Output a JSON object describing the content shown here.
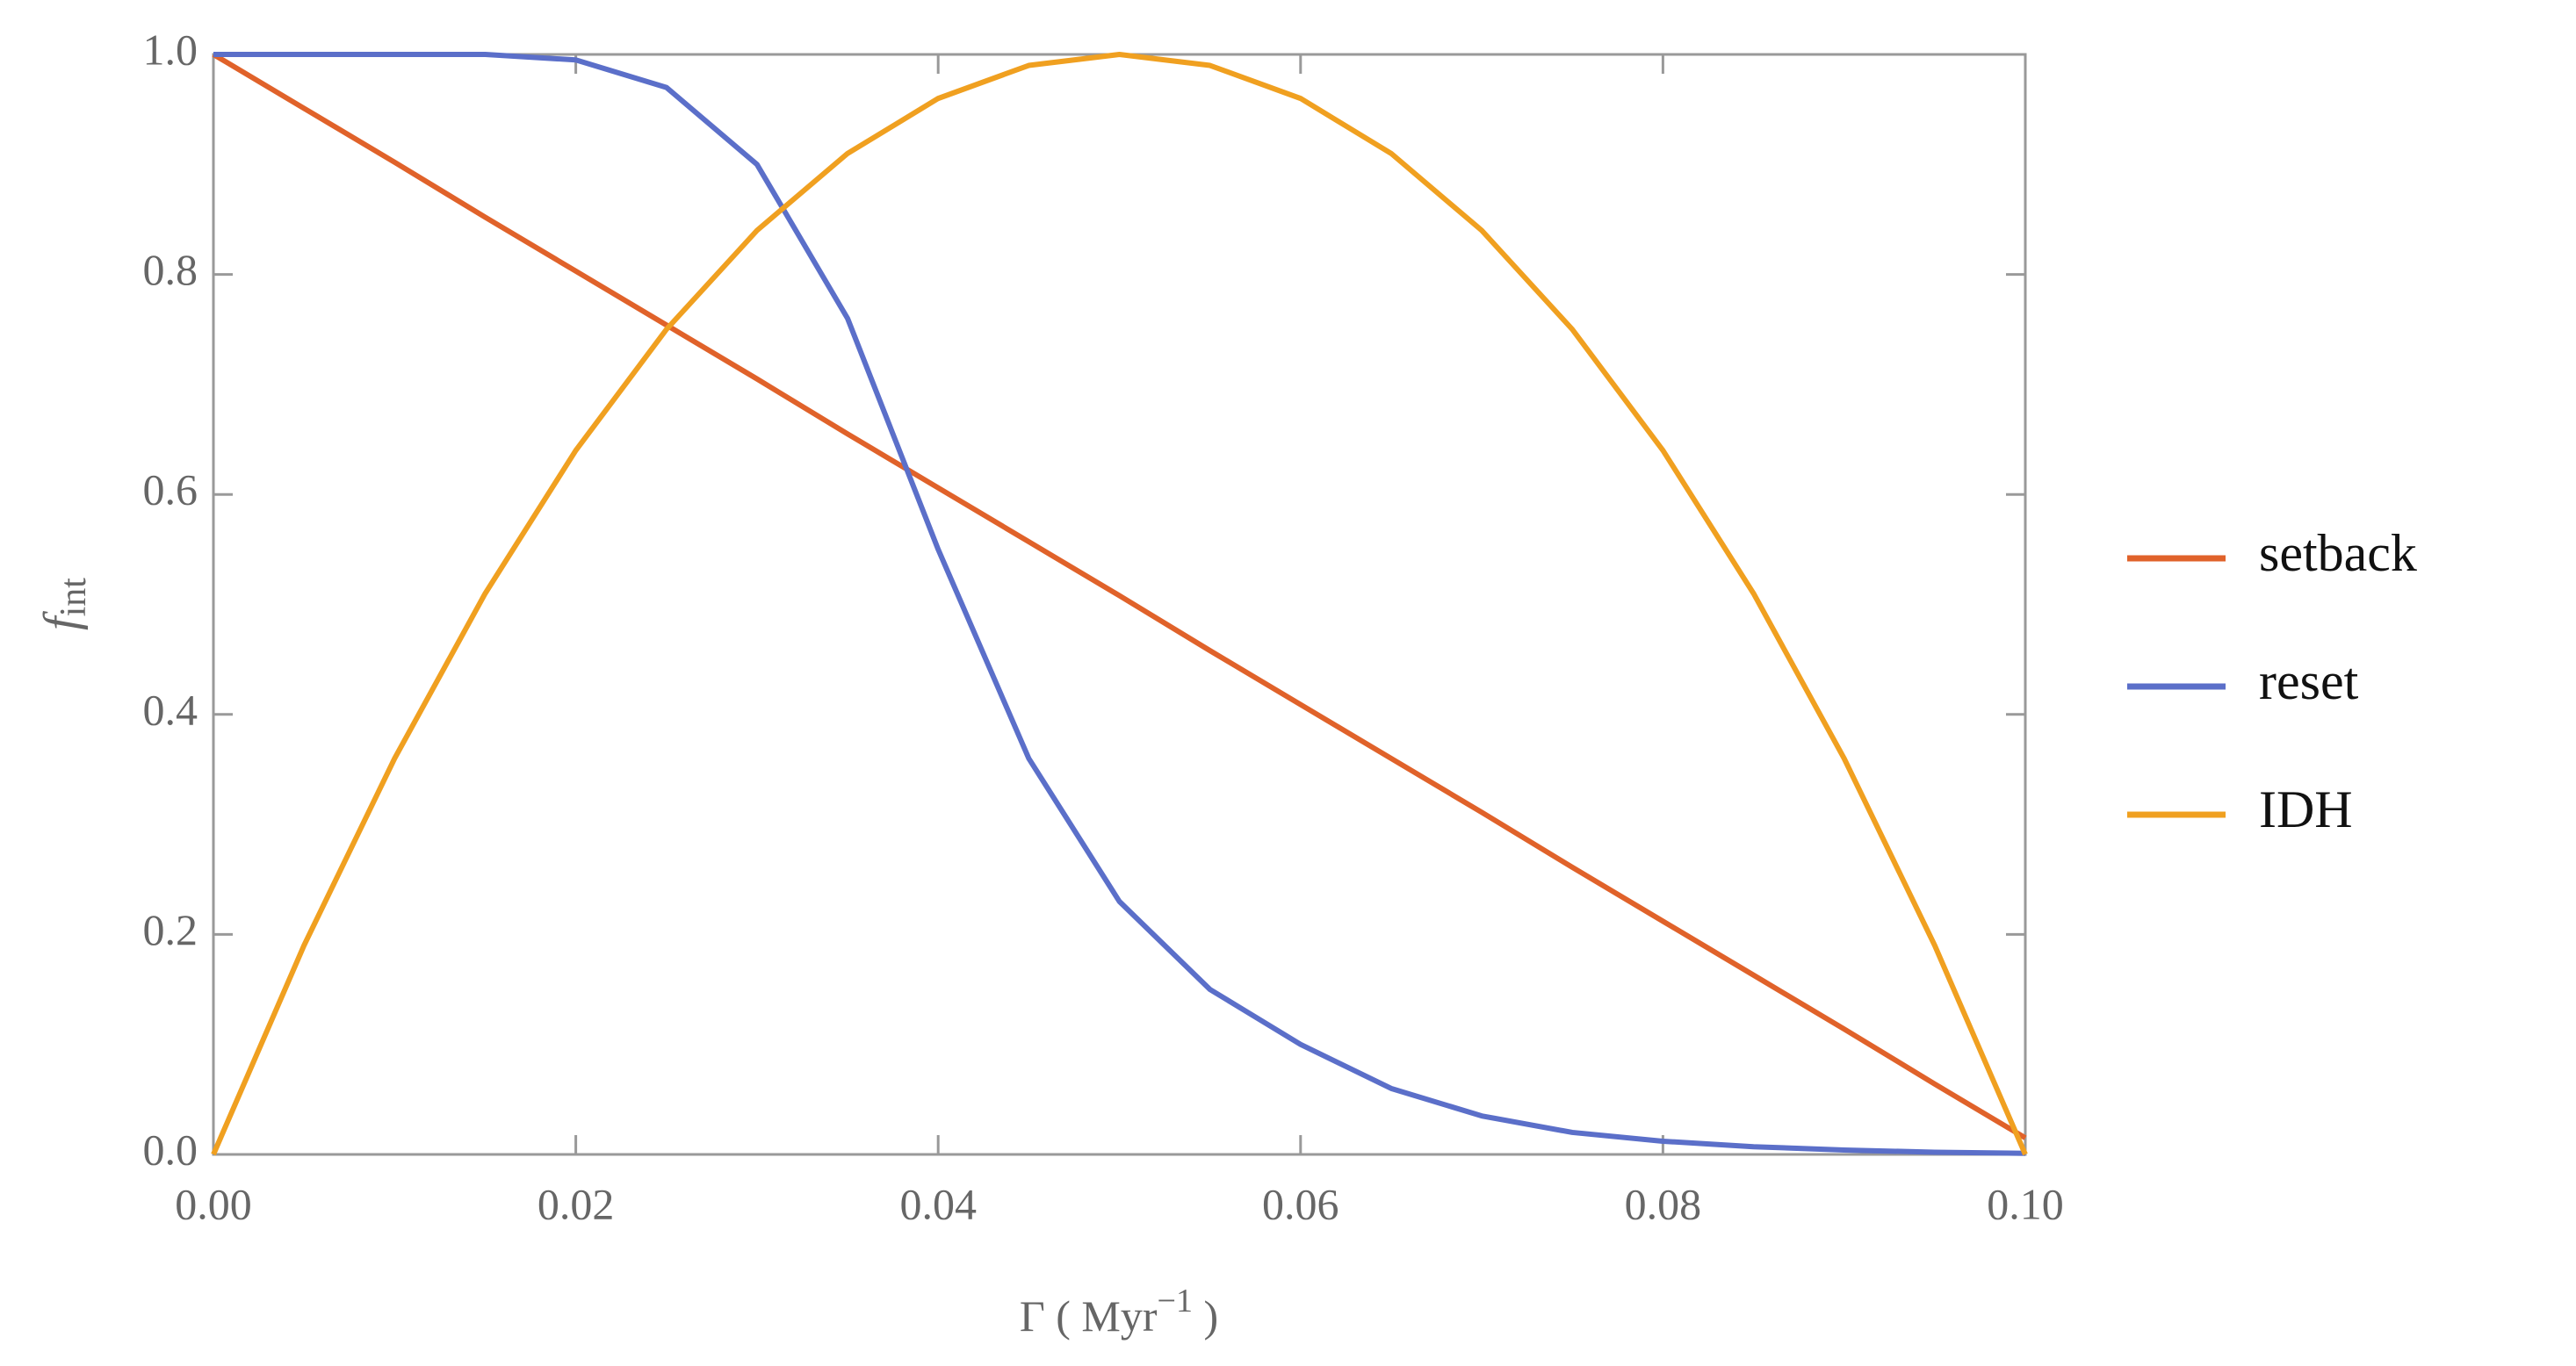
{
  "chart_data": {
    "type": "line",
    "ylabel": {
      "base": "f",
      "sub": "int"
    },
    "xlabel": {
      "text": "Γ ( Myr",
      "sup": "−1",
      "end": " )"
    },
    "x": [
      0,
      0.005,
      0.01,
      0.015,
      0.02,
      0.025,
      0.03,
      0.035,
      0.04,
      0.045,
      0.05,
      0.055,
      0.06,
      0.065,
      0.07,
      0.075,
      0.08,
      0.085,
      0.09,
      0.095,
      0.1
    ],
    "series": [
      {
        "name": "setback",
        "color": "#e0622a",
        "values": [
          1.0,
          0.951,
          0.902,
          0.852,
          0.803,
          0.754,
          0.705,
          0.655,
          0.606,
          0.557,
          0.508,
          0.458,
          0.409,
          0.36,
          0.311,
          0.261,
          0.212,
          0.163,
          0.114,
          0.064,
          0.015
        ]
      },
      {
        "name": "reset",
        "color": "#5b6fc9",
        "values": [
          1.0,
          1.0,
          1.0,
          1.0,
          0.995,
          0.97,
          0.9,
          0.76,
          0.55,
          0.36,
          0.23,
          0.15,
          0.1,
          0.06,
          0.035,
          0.02,
          0.012,
          0.007,
          0.004,
          0.002,
          0.001
        ]
      },
      {
        "name": "IDH",
        "color": "#f0a020",
        "values": [
          0,
          0.19,
          0.36,
          0.51,
          0.64,
          0.75,
          0.84,
          0.91,
          0.96,
          0.99,
          1.0,
          0.99,
          0.96,
          0.91,
          0.84,
          0.75,
          0.64,
          0.51,
          0.36,
          0.19,
          0
        ]
      }
    ],
    "xlim": [
      0,
      0.1
    ],
    "ylim": [
      0,
      1
    ],
    "xticks": [
      {
        "value": 0,
        "label": "0.00"
      },
      {
        "value": 0.02,
        "label": "0.02"
      },
      {
        "value": 0.04,
        "label": "0.04"
      },
      {
        "value": 0.06,
        "label": "0.06"
      },
      {
        "value": 0.08,
        "label": "0.08"
      },
      {
        "value": 0.1,
        "label": "0.10"
      }
    ],
    "yticks": [
      {
        "value": 0,
        "label": "0.0"
      },
      {
        "value": 0.2,
        "label": "0.2"
      },
      {
        "value": 0.4,
        "label": "0.4"
      },
      {
        "value": 0.6,
        "label": "0.6"
      },
      {
        "value": 0.8,
        "label": "0.8"
      },
      {
        "value": 1,
        "label": "1.0"
      }
    ],
    "legend": "right"
  }
}
